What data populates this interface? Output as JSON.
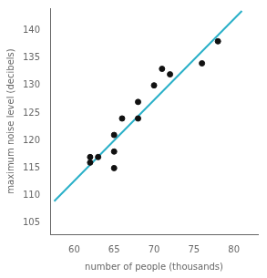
{
  "chart_data": {
    "type": "scatter",
    "xlabel": "number of people (thousands)",
    "ylabel": "maximum noise level (decibels)",
    "series": [
      {
        "type": "line",
        "color": "#2ab0c8",
        "x": [
          57.5,
          81
        ],
        "values": [
          109.0,
          143.5
        ]
      },
      {
        "type": "scatter",
        "color": "#111111",
        "x": [
          62,
          62,
          63,
          65,
          65,
          65,
          66,
          68,
          68,
          70,
          71,
          72,
          76,
          78
        ],
        "values": [
          117,
          116,
          117,
          115,
          118,
          121,
          124,
          124,
          127,
          130,
          133,
          132,
          134,
          138
        ]
      }
    ],
    "xlim": [
      57,
      83
    ],
    "xticks": [
      60,
      65,
      70,
      75,
      80
    ],
    "ylim": [
      103,
      144
    ],
    "yticks": [
      105,
      110,
      115,
      120,
      125,
      130,
      135,
      140
    ],
    "grid": false
  }
}
